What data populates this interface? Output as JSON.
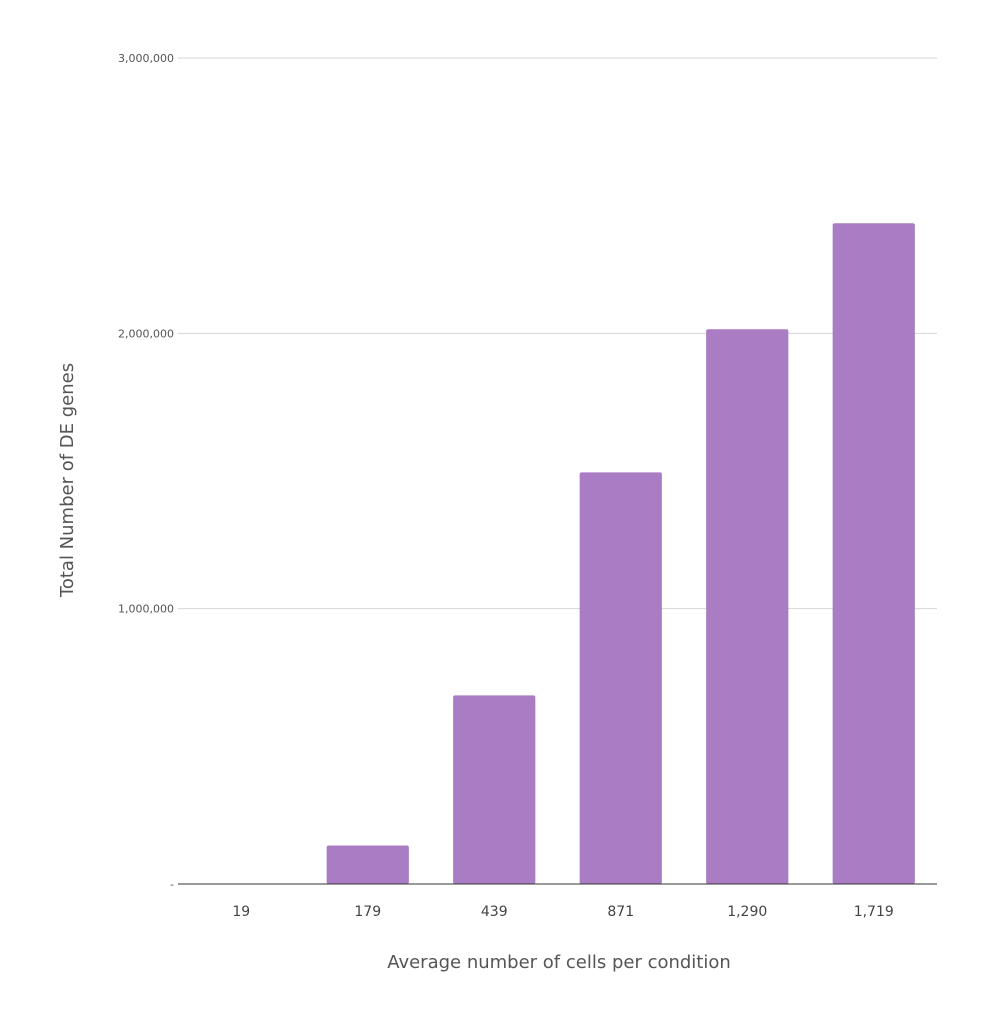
{
  "chart_data": {
    "type": "bar",
    "title": "",
    "xlabel": "Average number of cells per condition",
    "ylabel": "Total Number of DE genes",
    "categories": [
      "19",
      "179",
      "439",
      "871",
      "1,290",
      "1,719"
    ],
    "values": [
      0,
      140000,
      685000,
      1495000,
      2015000,
      2400000
    ],
    "ylim": [
      0,
      3000000
    ],
    "y_ticks": [
      {
        "value": 0,
        "label": "-"
      },
      {
        "value": 1000000,
        "label": "1,000,000"
      },
      {
        "value": 2000000,
        "label": "2,000,000"
      },
      {
        "value": 3000000,
        "label": "3,000,000"
      }
    ],
    "bar_color": "#a97cc4",
    "grid": true,
    "legend": "none"
  }
}
